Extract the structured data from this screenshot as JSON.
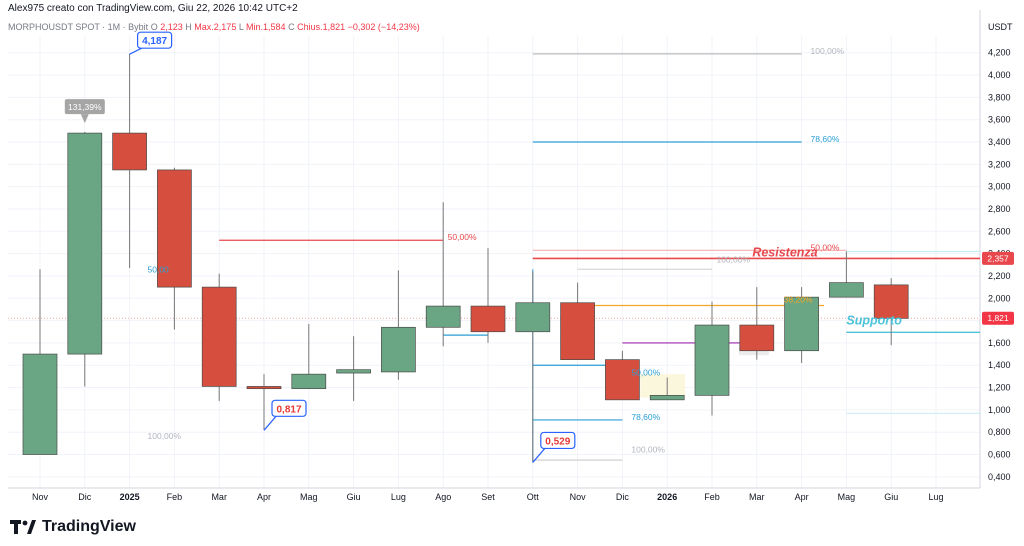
{
  "header": {
    "creator": "Alex975 creato con TradingView.com, Giu 22, 2026 10:42 UTC+2",
    "symbol": "MORPHOUSDT SPOT · 1M · Bybit",
    "o_label": "O",
    "open": "2,123",
    "h_label": "H",
    "high": "Max.2,175",
    "l_label": "L",
    "low": "Min.1,584",
    "c_label": "C",
    "close": "Chius.1,821",
    "change": "−0,302 (−14,23%)"
  },
  "footer": {
    "brand": "TradingView"
  },
  "colors": {
    "up": "#6aa684",
    "down": "#d64f3e",
    "resistance": "#e8474c",
    "support": "#4cc3d9",
    "fib_blue": "#2a9fd6",
    "orange": "#f5a623",
    "purple": "#9c27b0",
    "grey": "#c7c7c7"
  },
  "chart_data": {
    "type": "candlestick",
    "currency": "USDT",
    "ylim": [
      0.3,
      4.35
    ],
    "y_ticks": [
      "4,200",
      "4,000",
      "3,800",
      "3,600",
      "3,400",
      "3,200",
      "3,000",
      "2,800",
      "2,600",
      "2,400",
      "2,200",
      "2,000",
      "1,800",
      "1,600",
      "1,400",
      "1,200",
      "1,000",
      "0,800",
      "0,600",
      "0,400"
    ],
    "y_tick_values": [
      4.2,
      4.0,
      3.8,
      3.6,
      3.4,
      3.2,
      3.0,
      2.8,
      2.6,
      2.4,
      2.2,
      2.0,
      1.8,
      1.6,
      1.4,
      1.2,
      1.0,
      0.8,
      0.6,
      0.4
    ],
    "x_labels": [
      "Nov",
      "Dic",
      "2025",
      "Feb",
      "Mar",
      "Apr",
      "Mag",
      "Giu",
      "Lug",
      "Ago",
      "Set",
      "Ott",
      "Nov",
      "Dic",
      "2026",
      "Feb",
      "Mar",
      "Apr",
      "Mag",
      "Giu",
      "Lug"
    ],
    "candles": [
      {
        "o": 0.6,
        "h": 2.26,
        "l": 0.6,
        "c": 1.5
      },
      {
        "o": 1.5,
        "h": 3.49,
        "l": 1.21,
        "c": 3.48
      },
      {
        "o": 3.48,
        "h": 4.19,
        "l": 2.27,
        "c": 3.15
      },
      {
        "o": 3.15,
        "h": 3.17,
        "l": 1.72,
        "c": 2.1
      },
      {
        "o": 2.1,
        "h": 2.22,
        "l": 1.08,
        "c": 1.21
      },
      {
        "o": 1.21,
        "h": 1.32,
        "l": 0.82,
        "c": 1.19
      },
      {
        "o": 1.19,
        "h": 1.77,
        "l": 1.19,
        "c": 1.32
      },
      {
        "o": 1.33,
        "h": 1.66,
        "l": 1.08,
        "c": 1.36
      },
      {
        "o": 1.34,
        "h": 2.25,
        "l": 1.27,
        "c": 1.74
      },
      {
        "o": 1.74,
        "h": 2.86,
        "l": 1.57,
        "c": 1.93
      },
      {
        "o": 1.93,
        "h": 2.45,
        "l": 1.6,
        "c": 1.7
      },
      {
        "o": 1.7,
        "h": 2.24,
        "l": 0.53,
        "c": 1.96
      },
      {
        "o": 1.96,
        "h": 2.14,
        "l": 1.45,
        "c": 1.45
      },
      {
        "o": 1.45,
        "h": 1.53,
        "l": 1.09,
        "c": 1.09
      },
      {
        "o": 1.09,
        "h": 1.29,
        "l": 1.09,
        "c": 1.13
      },
      {
        "o": 1.13,
        "h": 1.97,
        "l": 0.95,
        "c": 1.76
      },
      {
        "o": 1.76,
        "h": 2.1,
        "l": 1.45,
        "c": 1.53
      },
      {
        "o": 1.53,
        "h": 2.1,
        "l": 1.42,
        "c": 2.01
      },
      {
        "o": 2.01,
        "h": 2.42,
        "l": 2.01,
        "c": 2.14
      },
      {
        "o": 2.12,
        "h": 2.18,
        "l": 1.58,
        "c": 1.82
      }
    ],
    "current_price": 1.821,
    "current_price_label": "1,821",
    "resistance": {
      "y": 2.357,
      "label": "Resistenza",
      "price_label": "2,357"
    },
    "support": {
      "y": 1.695,
      "label": "Supporto"
    },
    "callouts": [
      {
        "bar": 2,
        "y": 4.187,
        "label": "4,187",
        "dir": "up"
      },
      {
        "bar": 5,
        "y": 0.817,
        "label": "0,817",
        "dir": "down"
      },
      {
        "bar": 11,
        "y": 0.529,
        "label": "0,529",
        "dir": "down"
      },
      {
        "bar": 1,
        "y": 3.48,
        "label": "131,39%",
        "dir": "grey"
      }
    ],
    "fib_labels": [
      {
        "label": "100,00%",
        "x_bar": 17.2,
        "y": 4.19,
        "c": "grey"
      },
      {
        "label": "78,60%",
        "x_bar": 17.2,
        "y": 3.4,
        "c": "blue"
      },
      {
        "label": "50,00%",
        "x_bar": 17.2,
        "y": 2.43,
        "c": "red"
      },
      {
        "label": "50,00%",
        "x_bar": 9.1,
        "y": 2.52,
        "c": "red"
      },
      {
        "label": "50,00",
        "x_bar": 2.4,
        "y": 2.23,
        "c": "blue"
      },
      {
        "label": "100,00%",
        "x_bar": 2.4,
        "y": 0.74,
        "c": "grey"
      },
      {
        "label": "100,00%",
        "x_bar": 15.1,
        "y": 2.32,
        "c": "grey"
      },
      {
        "label": "100,00%",
        "x_bar": 13.2,
        "y": 0.62,
        "c": "grey"
      },
      {
        "label": "78,60%",
        "x_bar": 13.2,
        "y": 0.91,
        "c": "blue"
      },
      {
        "label": "50,00%",
        "x_bar": 13.2,
        "y": 1.31,
        "c": "blue"
      },
      {
        "label": "38,20%",
        "x_bar": 16.6,
        "y": 1.96,
        "c": "orange"
      }
    ]
  }
}
